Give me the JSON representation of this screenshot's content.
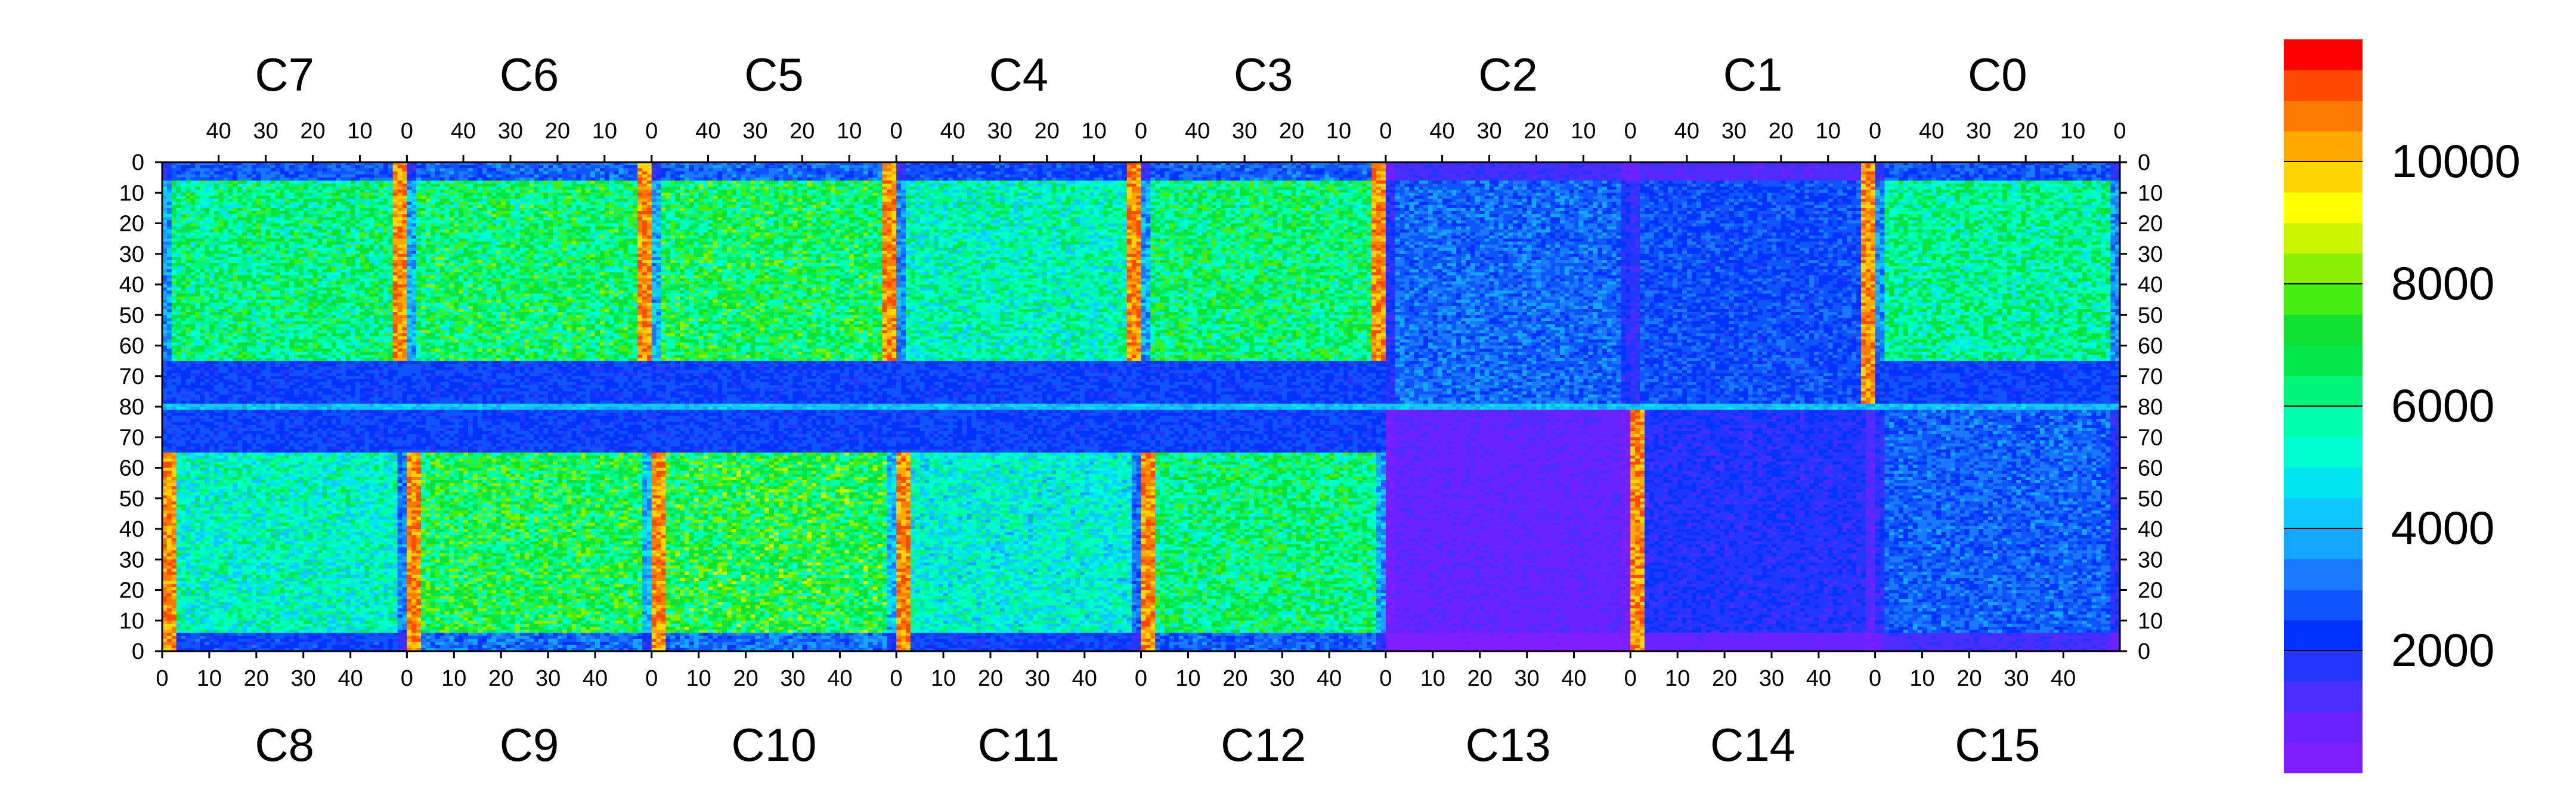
{
  "chart_data": {
    "type": "heatmap",
    "title": "",
    "xlabel": "",
    "ylabel": "",
    "grid": false,
    "legend": "colorbar-right",
    "chips_top": [
      "C7",
      "C6",
      "C5",
      "C4",
      "C3",
      "C2",
      "C1",
      "C0"
    ],
    "chips_bottom": [
      "C8",
      "C9",
      "C10",
      "C11",
      "C12",
      "C13",
      "C14",
      "C15"
    ],
    "column_ticks_top": [
      "40",
      "30",
      "20",
      "10",
      "0"
    ],
    "column_ticks_bottom": [
      "0",
      "10",
      "20",
      "30",
      "40"
    ],
    "row_ticks_top_half": [
      "0",
      "10",
      "20",
      "30",
      "40",
      "50",
      "60",
      "70",
      "80"
    ],
    "row_ticks_bottom_half": [
      "70",
      "60",
      "50",
      "40",
      "30",
      "20",
      "10",
      "0"
    ],
    "columns_per_chip": 52,
    "rows_per_half": 80,
    "colorbar": {
      "min": 0,
      "max": 12000,
      "ticks": [
        {
          "value": 2000,
          "label": "2000"
        },
        {
          "value": 4000,
          "label": "4000"
        },
        {
          "value": 6000,
          "label": "6000"
        },
        {
          "value": 8000,
          "label": "8000"
        },
        {
          "value": 10000,
          "label": "10000"
        }
      ],
      "colors": [
        "#7f1fff",
        "#6a22ff",
        "#4a2dff",
        "#2336ff",
        "#0033ff",
        "#0f55ff",
        "#1a7aff",
        "#14a6ff",
        "#10c8ff",
        "#00e6f0",
        "#00ffd0",
        "#00ffaa",
        "#00f57a",
        "#00e84a",
        "#10e030",
        "#44ee10",
        "#88f000",
        "#ccf500",
        "#ffff00",
        "#ffd400",
        "#ffa800",
        "#ff7a00",
        "#ff4a00",
        "#ff0000"
      ]
    },
    "chips": [
      {
        "name": "C7",
        "mean": 6200,
        "hot_edge": "right"
      },
      {
        "name": "C6",
        "mean": 6500,
        "hot_edge": "right"
      },
      {
        "name": "C5",
        "mean": 6600,
        "hot_edge": "right"
      },
      {
        "name": "C4",
        "mean": 5600,
        "hot_edge": "right"
      },
      {
        "name": "C3",
        "mean": 6400,
        "hot_edge": "right"
      },
      {
        "name": "C2",
        "mean": 3000,
        "hot_edge": "none"
      },
      {
        "name": "C1",
        "mean": 2600,
        "hot_edge": "right"
      },
      {
        "name": "C0",
        "mean": 6000,
        "hot_edge": "none"
      },
      {
        "name": "C8",
        "mean": 5400,
        "hot_edge": "left"
      },
      {
        "name": "C9",
        "mean": 6800,
        "hot_edge": "left"
      },
      {
        "name": "C10",
        "mean": 6900,
        "hot_edge": "left"
      },
      {
        "name": "C11",
        "mean": 5200,
        "hot_edge": "left"
      },
      {
        "name": "C12",
        "mean": 6300,
        "hot_edge": "left"
      },
      {
        "name": "C13",
        "mean": 900,
        "hot_edge": "none"
      },
      {
        "name": "C14",
        "mean": 1800,
        "hot_edge": "left"
      },
      {
        "name": "C15",
        "mean": 2900,
        "hot_edge": "none"
      }
    ]
  }
}
